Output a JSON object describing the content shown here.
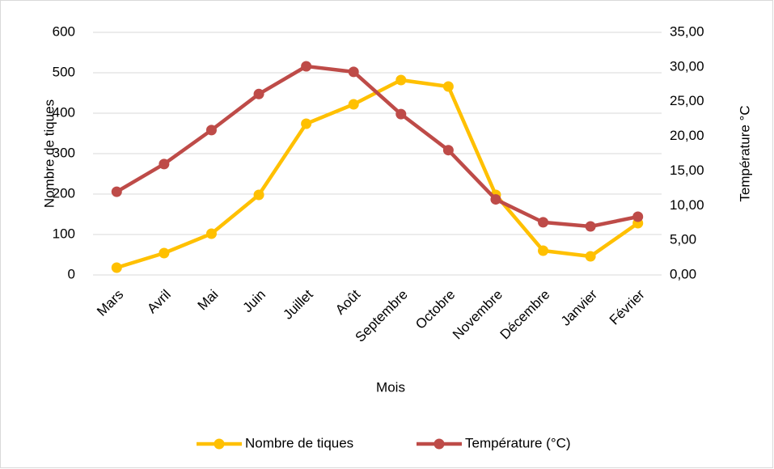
{
  "chart_data": {
    "type": "line",
    "x_label": "Mois",
    "y_label": "Nombre de tiques",
    "y2_label": "Température °C",
    "categories": [
      "Mars",
      "Avril",
      "Mai",
      "Juin",
      "Juillet",
      "Août",
      "Septembre",
      "Octobre",
      "Novembre",
      "Décembre",
      "Janvier",
      "Février"
    ],
    "series": [
      {
        "name": "Nombre de tiques",
        "color": "#ffc000",
        "values": [
          18,
          54,
          102,
          198,
          374,
          422,
          482,
          466,
          198,
          60,
          46,
          128
        ]
      },
      {
        "name": "Température (°C)",
        "color": "#be4b48",
        "axis": "y2",
        "values": [
          12.0,
          16.0,
          20.9,
          26.1,
          30.1,
          29.3,
          23.2,
          18.0,
          10.9,
          7.6,
          7.0,
          8.4
        ]
      }
    ],
    "ylim": [
      0,
      600
    ],
    "yticks": [
      0,
      100,
      200,
      300,
      400,
      500,
      600
    ],
    "y2lim": [
      0,
      35
    ],
    "y2ticks": [
      {
        "value": 0,
        "label": "0,00"
      },
      {
        "value": 5,
        "label": "5,00"
      },
      {
        "value": 10,
        "label": "10,00"
      },
      {
        "value": 15,
        "label": "15,00"
      },
      {
        "value": 20,
        "label": "20,00"
      },
      {
        "value": 25,
        "label": "25,00"
      },
      {
        "value": 30,
        "label": "30,00"
      },
      {
        "value": 35,
        "label": "35,00"
      }
    ],
    "grid": true,
    "legend": "bottom"
  }
}
